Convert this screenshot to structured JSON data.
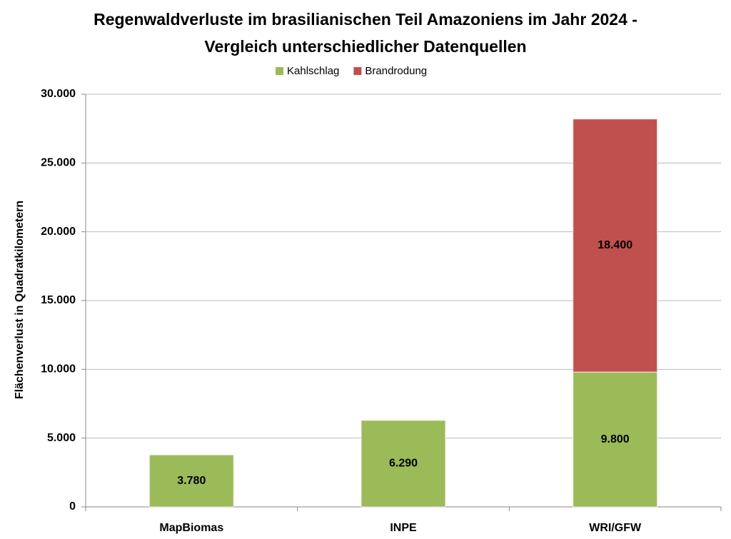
{
  "chart_data": {
    "type": "stacked-bar",
    "title": "Regenwaldverluste im brasilianischen Teil Amazoniens im Jahr 2024 - Vergleich unterschiedlicher Datenquellen",
    "y_label": "Flächenverlust in Quadratkilometern",
    "categories": [
      "MapBiomas",
      "INPE",
      "WRI/GFW"
    ],
    "series": [
      {
        "name": "Kahlschlag",
        "color": "#9bbb59",
        "values": [
          3780,
          6290,
          9800
        ],
        "value_labels": [
          "3.780",
          "6.290",
          "9.800"
        ]
      },
      {
        "name": "Brandrodung",
        "color": "#c0504d",
        "values": [
          null,
          null,
          18400
        ],
        "value_labels": [
          null,
          null,
          "18.400"
        ]
      }
    ],
    "ylim": [
      0,
      30000
    ],
    "yticks": [
      0,
      {
        "value": 5000,
        "label": "5.000"
      },
      {
        "value": 10000,
        "label": "10.000"
      },
      {
        "value": 15000,
        "label": "15.000"
      },
      {
        "value": 20000,
        "label": "20.000"
      },
      {
        "value": 25000,
        "label": "25.000"
      },
      {
        "value": 30000,
        "label": "30.000"
      }
    ],
    "grid": true,
    "legend": "top"
  }
}
